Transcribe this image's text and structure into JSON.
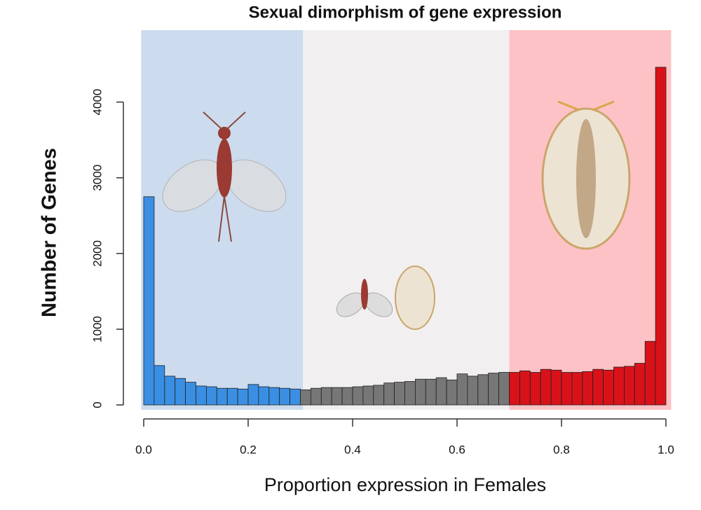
{
  "chart_data": {
    "type": "histogram",
    "title": "Sexual dimorphism of gene expression",
    "x_label": "Proportion expression in Females",
    "y_label": "Number of Genes",
    "bins": [
      0,
      0.02,
      0.04,
      0.06,
      0.08,
      0.1,
      0.12,
      0.14,
      0.16,
      0.18,
      0.2,
      0.22,
      0.24,
      0.26,
      0.28,
      0.3,
      0.32,
      0.34,
      0.36,
      0.38,
      0.4,
      0.42,
      0.44,
      0.46,
      0.48,
      0.5,
      0.52,
      0.54,
      0.56,
      0.58,
      0.6,
      0.62,
      0.64,
      0.66,
      0.68,
      0.7,
      0.72,
      0.74,
      0.76,
      0.78,
      0.8,
      0.82,
      0.84,
      0.86,
      0.88,
      0.9,
      0.92,
      0.94,
      0.96,
      0.98,
      1
    ],
    "values": [
      2750,
      520,
      380,
      350,
      300,
      250,
      240,
      220,
      220,
      210,
      270,
      240,
      230,
      220,
      210,
      200,
      220,
      230,
      230,
      230,
      240,
      250,
      260,
      290,
      300,
      310,
      340,
      340,
      360,
      330,
      410,
      380,
      400,
      420,
      430,
      430,
      450,
      430,
      470,
      460,
      430,
      430,
      440,
      470,
      460,
      500,
      510,
      550,
      840,
      4460
    ],
    "regions": [
      {
        "range": [
          -0.005,
          0.305
        ],
        "bar_color": "#3a8fe3",
        "shade": "#ccdcee"
      },
      {
        "range": [
          0.305,
          0.7
        ],
        "bar_color": "#777777",
        "shade": "#f1eff0"
      },
      {
        "range": [
          0.7,
          1.01
        ],
        "bar_color": "#d9121a",
        "shade": "#fdc2c5"
      }
    ],
    "xlim": [
      0,
      1
    ],
    "ylim": [
      0,
      4950
    ],
    "xticks": [
      {
        "value": 0,
        "label": "0.0"
      },
      0.2,
      0.4,
      0.6,
      0.8,
      {
        "value": 1,
        "label": "1.0"
      }
    ],
    "yticks": [
      0,
      1000,
      2000,
      3000,
      4000
    ]
  }
}
